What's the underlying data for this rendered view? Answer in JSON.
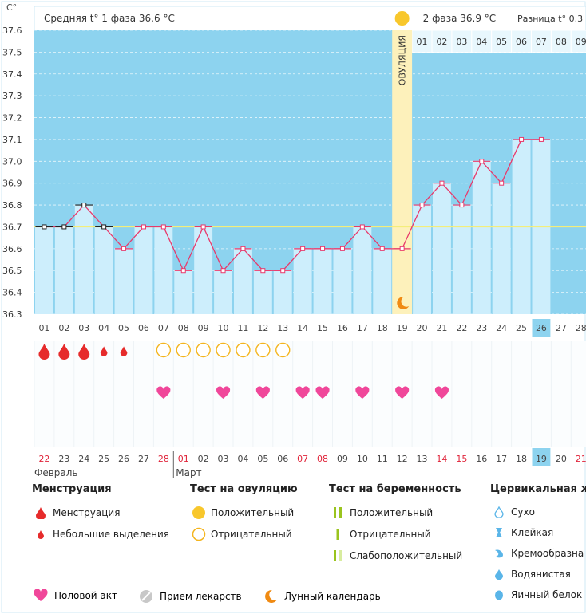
{
  "header": {
    "unit": "C°",
    "phase1_label": "Средняя t° 1 фаза",
    "phase1_temp": "36.6 °C",
    "phase2_label": "2 фаза",
    "phase2_temp": "36.9 °C",
    "diff_label": "Разница t° 0.3"
  },
  "ovulation_label": "ОВУЛЯЦИЯ",
  "chart_data": {
    "type": "bar",
    "title": "",
    "xlabel": "",
    "ylabel": "C°",
    "ylim": [
      36.3,
      37.6
    ],
    "yticks": [
      "37.6",
      "37.5",
      "37.4",
      "37.3",
      "37.2",
      "37.1",
      "37.0",
      "36.9",
      "36.8",
      "36.7",
      "36.6",
      "36.5",
      "36.4",
      "36.3"
    ],
    "coverline": 36.7,
    "ovulation_day": 19,
    "today_day": 26,
    "categories": [
      "01",
      "02",
      "03",
      "04",
      "05",
      "06",
      "07",
      "08",
      "09",
      "10",
      "11",
      "12",
      "13",
      "14",
      "15",
      "16",
      "17",
      "18",
      "19",
      "20",
      "21",
      "22",
      "23",
      "24",
      "25",
      "26",
      "27",
      "28"
    ],
    "values": [
      36.7,
      36.7,
      36.8,
      36.7,
      36.6,
      36.7,
      36.7,
      36.5,
      36.7,
      36.5,
      36.6,
      36.5,
      36.5,
      36.6,
      36.6,
      36.6,
      36.7,
      36.6,
      36.6,
      36.8,
      36.9,
      36.8,
      37.0,
      36.9,
      37.1,
      37.1,
      null,
      null
    ],
    "phase2_day_labels": [
      "01",
      "02",
      "03",
      "04",
      "05",
      "06",
      "07",
      "08",
      "09"
    ],
    "dates": [
      "22",
      "23",
      "24",
      "25",
      "26",
      "27",
      "28",
      "01",
      "02",
      "03",
      "04",
      "05",
      "06",
      "07",
      "08",
      "09",
      "10",
      "11",
      "12",
      "13",
      "14",
      "15",
      "16",
      "17",
      "18",
      "19",
      "20",
      "21"
    ],
    "date_colors": [
      "red",
      "default",
      "default",
      "default",
      "default",
      "default",
      "red",
      "red",
      "default",
      "default",
      "default",
      "default",
      "default",
      "red",
      "red",
      "default",
      "default",
      "default",
      "default",
      "default",
      "red",
      "red",
      "default",
      "default",
      "default",
      "today",
      "default",
      "red"
    ],
    "months": [
      "Февраль",
      "Март"
    ],
    "menstruation": [
      [
        "big",
        1
      ],
      [
        "big",
        2
      ],
      [
        "big",
        3
      ],
      [
        "small",
        4
      ],
      [
        "small",
        5
      ]
    ],
    "ovulation_tests_negative": [
      7,
      8,
      9,
      10,
      11,
      12,
      13
    ],
    "intercourse": [
      7,
      10,
      12,
      14,
      15,
      17,
      19,
      21
    ]
  },
  "legend": {
    "menstruation": {
      "title": "Менструация",
      "items": [
        "Менструация",
        "Небольшие выделения"
      ]
    },
    "ovulation_test": {
      "title": "Тест на овуляцию",
      "items": [
        "Положительный",
        "Отрицательный"
      ]
    },
    "pregnancy_test": {
      "title": "Тест на беременность",
      "items": [
        "Положительный",
        "Отрицательный",
        "Слабоположительный"
      ]
    },
    "cervical": {
      "title": "Цервикальная жи",
      "items": [
        "Сухо",
        "Клейкая",
        "Кремообразна",
        "Водянистая",
        "Яичный белок"
      ]
    },
    "footer": [
      "Половой акт",
      "Прием лекарств",
      "Лунный календарь"
    ]
  },
  "colors": {
    "sky": "#8dd3ef",
    "bar": "#cdeefc",
    "bar_stroke": "#ffffff",
    "line": "#e8396b",
    "coverline": "#f4ee7a",
    "ovulation_band": "#fdf1bb",
    "sun": "#f8c72c",
    "moon": "#f08a12",
    "heart": "#f0479a",
    "drop": "#e62b2b",
    "ovu_neg": "#f4b51e",
    "preg": "#9ac41e",
    "cervical": "#5ab5e8",
    "today": "#8dd3ef",
    "red_text": "#e0243a"
  }
}
